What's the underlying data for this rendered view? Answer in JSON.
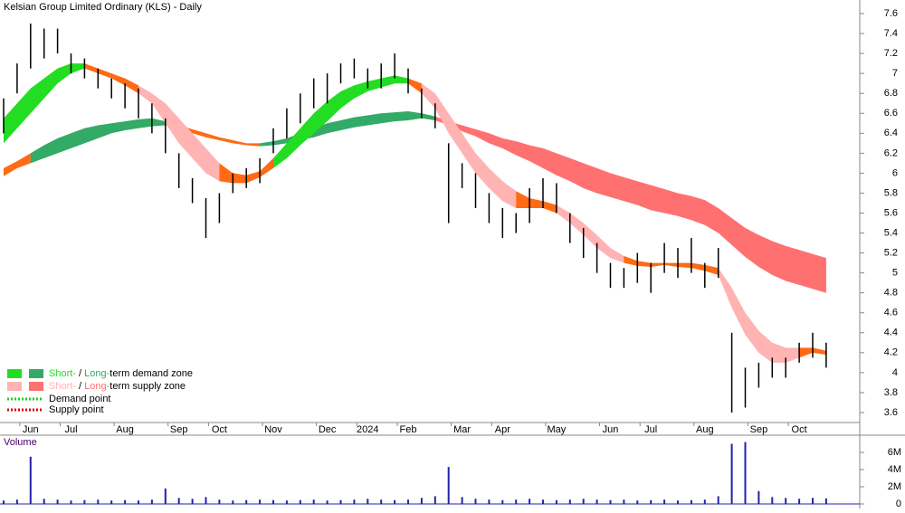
{
  "chart_data": {
    "type": "ohlc",
    "title": "Kelsian Group Limited Ordinary (KLS) - Daily",
    "categories": [
      null,
      null,
      "Jun",
      null,
      null,
      "Jul",
      null,
      null,
      null,
      "Aug",
      null,
      null,
      null,
      "Sep",
      null,
      null,
      "Oct",
      null,
      null,
      null,
      "Nov",
      null,
      null,
      null,
      "Dec",
      null,
      null,
      "2024",
      null,
      null,
      "Feb",
      null,
      null,
      null,
      "Mar",
      null,
      null,
      "Apr",
      null,
      null,
      null,
      "May",
      null,
      null,
      null,
      "Jun",
      null,
      null,
      "Jul",
      null,
      null,
      null,
      "Aug",
      null,
      null,
      null,
      "Sep",
      null,
      null,
      "Oct",
      null,
      null
    ],
    "high": [
      6.75,
      7.1,
      7.5,
      7.45,
      7.45,
      7.2,
      7.15,
      7.05,
      6.95,
      6.9,
      6.85,
      6.7,
      6.55,
      6.2,
      5.95,
      5.75,
      5.8,
      6.0,
      6.05,
      6.15,
      6.45,
      6.65,
      6.8,
      6.95,
      7.0,
      7.1,
      7.15,
      7.05,
      7.1,
      7.2,
      7.05,
      6.85,
      6.7,
      6.3,
      6.1,
      6.0,
      5.8,
      5.65,
      5.6,
      5.85,
      5.95,
      5.9,
      5.6,
      5.45,
      5.3,
      5.1,
      5.05,
      5.2,
      5.1,
      5.3,
      5.25,
      5.35,
      5.1,
      5.25,
      4.4,
      4.05,
      4.1,
      4.15,
      4.15,
      4.3,
      4.4,
      4.3
    ],
    "low": [
      6.4,
      6.8,
      7.05,
      7.15,
      7.2,
      7.0,
      6.95,
      6.85,
      6.75,
      6.65,
      6.55,
      6.4,
      6.2,
      5.85,
      5.7,
      5.35,
      5.5,
      5.8,
      5.85,
      5.9,
      6.2,
      6.35,
      6.5,
      6.65,
      6.7,
      6.9,
      6.95,
      6.85,
      6.85,
      6.95,
      6.8,
      6.55,
      6.45,
      5.5,
      5.85,
      5.65,
      5.5,
      5.35,
      5.4,
      5.5,
      5.65,
      5.6,
      5.3,
      5.15,
      5.0,
      4.85,
      4.85,
      4.9,
      4.8,
      5.0,
      4.95,
      5.0,
      4.85,
      4.95,
      3.6,
      3.65,
      3.85,
      3.95,
      3.95,
      4.1,
      4.15,
      4.05
    ],
    "short_upper": [
      6.55,
      6.7,
      6.85,
      6.95,
      7.05,
      7.1,
      7.1,
      7.05,
      7.0,
      6.95,
      6.88,
      6.8,
      6.7,
      6.55,
      6.4,
      6.25,
      6.1,
      6.0,
      5.98,
      6.02,
      6.15,
      6.3,
      6.45,
      6.6,
      6.72,
      6.82,
      6.88,
      6.92,
      6.95,
      6.98,
      6.95,
      6.9,
      6.8,
      6.6,
      6.4,
      6.2,
      6.05,
      5.92,
      5.82,
      5.75,
      5.72,
      5.68,
      5.6,
      5.5,
      5.38,
      5.25,
      5.17,
      5.12,
      5.1,
      5.1,
      5.1,
      5.1,
      5.08,
      5.05,
      4.85,
      4.6,
      4.42,
      4.3,
      4.25,
      4.25,
      4.25,
      4.22
    ],
    "short_lower": [
      6.3,
      6.45,
      6.6,
      6.75,
      6.9,
      7.0,
      7.05,
      7.0,
      6.95,
      6.88,
      6.8,
      6.7,
      6.5,
      6.3,
      6.15,
      6.0,
      5.92,
      5.9,
      5.9,
      5.96,
      6.05,
      6.15,
      6.28,
      6.4,
      6.52,
      6.65,
      6.75,
      6.82,
      6.86,
      6.9,
      6.9,
      6.8,
      6.65,
      6.4,
      6.2,
      6.0,
      5.85,
      5.72,
      5.65,
      5.65,
      5.65,
      5.6,
      5.5,
      5.38,
      5.25,
      5.15,
      5.1,
      5.07,
      5.06,
      5.08,
      5.06,
      5.05,
      5.02,
      4.98,
      4.65,
      4.38,
      4.2,
      4.1,
      4.1,
      4.15,
      4.2,
      4.18
    ],
    "short_segments": [
      {
        "from": 0,
        "color": "#22dd22"
      },
      {
        "from": 6,
        "color": "#ff6a13"
      },
      {
        "from": 10,
        "color": "#ffb3b3"
      },
      {
        "from": 16,
        "color": "#ff6a13"
      },
      {
        "from": 20,
        "color": "#22dd22"
      },
      {
        "from": 30,
        "color": "#ff6a13"
      },
      {
        "from": 31,
        "color": "#ffb3b3"
      },
      {
        "from": 38,
        "color": "#ff6a13"
      },
      {
        "from": 41,
        "color": "#ffb3b3"
      },
      {
        "from": 46,
        "color": "#ff6a13"
      },
      {
        "from": 53,
        "color": "#ffb3b3"
      },
      {
        "from": 59,
        "color": "#ff6a13"
      }
    ],
    "long_upper": [
      6.05,
      6.12,
      6.2,
      6.28,
      6.35,
      6.4,
      6.45,
      6.48,
      6.5,
      6.52,
      6.54,
      6.55,
      6.52,
      6.48,
      6.44,
      6.4,
      6.36,
      6.33,
      6.3,
      6.3,
      6.32,
      6.35,
      6.4,
      6.45,
      6.5,
      6.53,
      6.56,
      6.58,
      6.6,
      6.61,
      6.62,
      6.6,
      6.57,
      6.52,
      6.48,
      6.44,
      6.4,
      6.35,
      6.32,
      6.28,
      6.25,
      6.2,
      6.15,
      6.1,
      6.05,
      6.0,
      5.96,
      5.92,
      5.88,
      5.84,
      5.8,
      5.77,
      5.73,
      5.65,
      5.55,
      5.45,
      5.38,
      5.32,
      5.27,
      5.23,
      5.19,
      5.15
    ],
    "long_lower": [
      5.97,
      6.05,
      6.1,
      6.15,
      6.2,
      6.25,
      6.3,
      6.35,
      6.4,
      6.43,
      6.45,
      6.47,
      6.48,
      6.45,
      6.4,
      6.36,
      6.33,
      6.3,
      6.28,
      6.27,
      6.28,
      6.3,
      6.33,
      6.36,
      6.4,
      6.43,
      6.46,
      6.48,
      6.5,
      6.52,
      6.53,
      6.55,
      6.53,
      6.48,
      6.42,
      6.37,
      6.3,
      6.25,
      6.18,
      6.12,
      6.05,
      5.98,
      5.92,
      5.85,
      5.8,
      5.76,
      5.72,
      5.68,
      5.63,
      5.6,
      5.57,
      5.53,
      5.48,
      5.4,
      5.28,
      5.16,
      5.06,
      4.98,
      4.92,
      4.88,
      4.84,
      4.8
    ],
    "long_segments": [
      {
        "from": 0,
        "color": "#ff6a13"
      },
      {
        "from": 2,
        "color": "#33aa66"
      },
      {
        "from": 12,
        "color": "#ff6a13"
      },
      {
        "from": 19,
        "color": "#33aa66"
      },
      {
        "from": 32,
        "color": "#ff7070"
      }
    ],
    "bar_color": "#000000",
    "ylim": [
      3.5,
      7.7
    ],
    "yticks": [
      3.6,
      3.8,
      4.0,
      4.2,
      4.4,
      4.6,
      4.8,
      5.0,
      5.2,
      5.4,
      5.6,
      5.8,
      6.0,
      6.2,
      6.4,
      6.6,
      6.8,
      7.0,
      7.2,
      7.4,
      7.6
    ],
    "legend": [
      {
        "colors": [
          "#22dd22",
          "#33aa66"
        ],
        "short": "Short-",
        "sep": " / ",
        "long": "Long-",
        "rest": "term demand zone",
        "text_colors": [
          "#22dd22",
          "#33aa66"
        ]
      },
      {
        "colors": [
          "#ffb3b3",
          "#ff7070"
        ],
        "short": "Short-",
        "sep": " / ",
        "long": "Long-",
        "rest": "term supply zone",
        "text_colors": [
          "#ffb3b3",
          "#ff7070"
        ]
      }
    ],
    "points": [
      {
        "label": "Demand point",
        "color": "#22cc22"
      },
      {
        "label": "Supply point",
        "color": "#dd0000"
      }
    ],
    "volume": {
      "title": "Volume",
      "color": "#2222aa",
      "values": [
        400000,
        500000,
        5500000,
        600000,
        500000,
        400000,
        450000,
        500000,
        400000,
        450000,
        400000,
        500000,
        1800000,
        700000,
        600000,
        800000,
        500000,
        400000,
        450000,
        500000,
        450000,
        400000,
        450000,
        500000,
        400000,
        450000,
        500000,
        600000,
        500000,
        450000,
        500000,
        700000,
        900000,
        4300000,
        800000,
        600000,
        500000,
        450000,
        500000,
        600000,
        500000,
        450000,
        500000,
        600000,
        500000,
        450000,
        500000,
        400000,
        450000,
        500000,
        400000,
        450000,
        500000,
        900000,
        7000000,
        7200000,
        1500000,
        800000,
        700000,
        600000,
        700000,
        650000
      ],
      "ylim": [
        0,
        8000000
      ],
      "yticks": [
        {
          "value": 0,
          "label": "0"
        },
        {
          "value": 2000000,
          "label": "2M"
        },
        {
          "value": 4000000,
          "label": "4M"
        },
        {
          "value": 6000000,
          "label": "6M"
        }
      ]
    }
  }
}
